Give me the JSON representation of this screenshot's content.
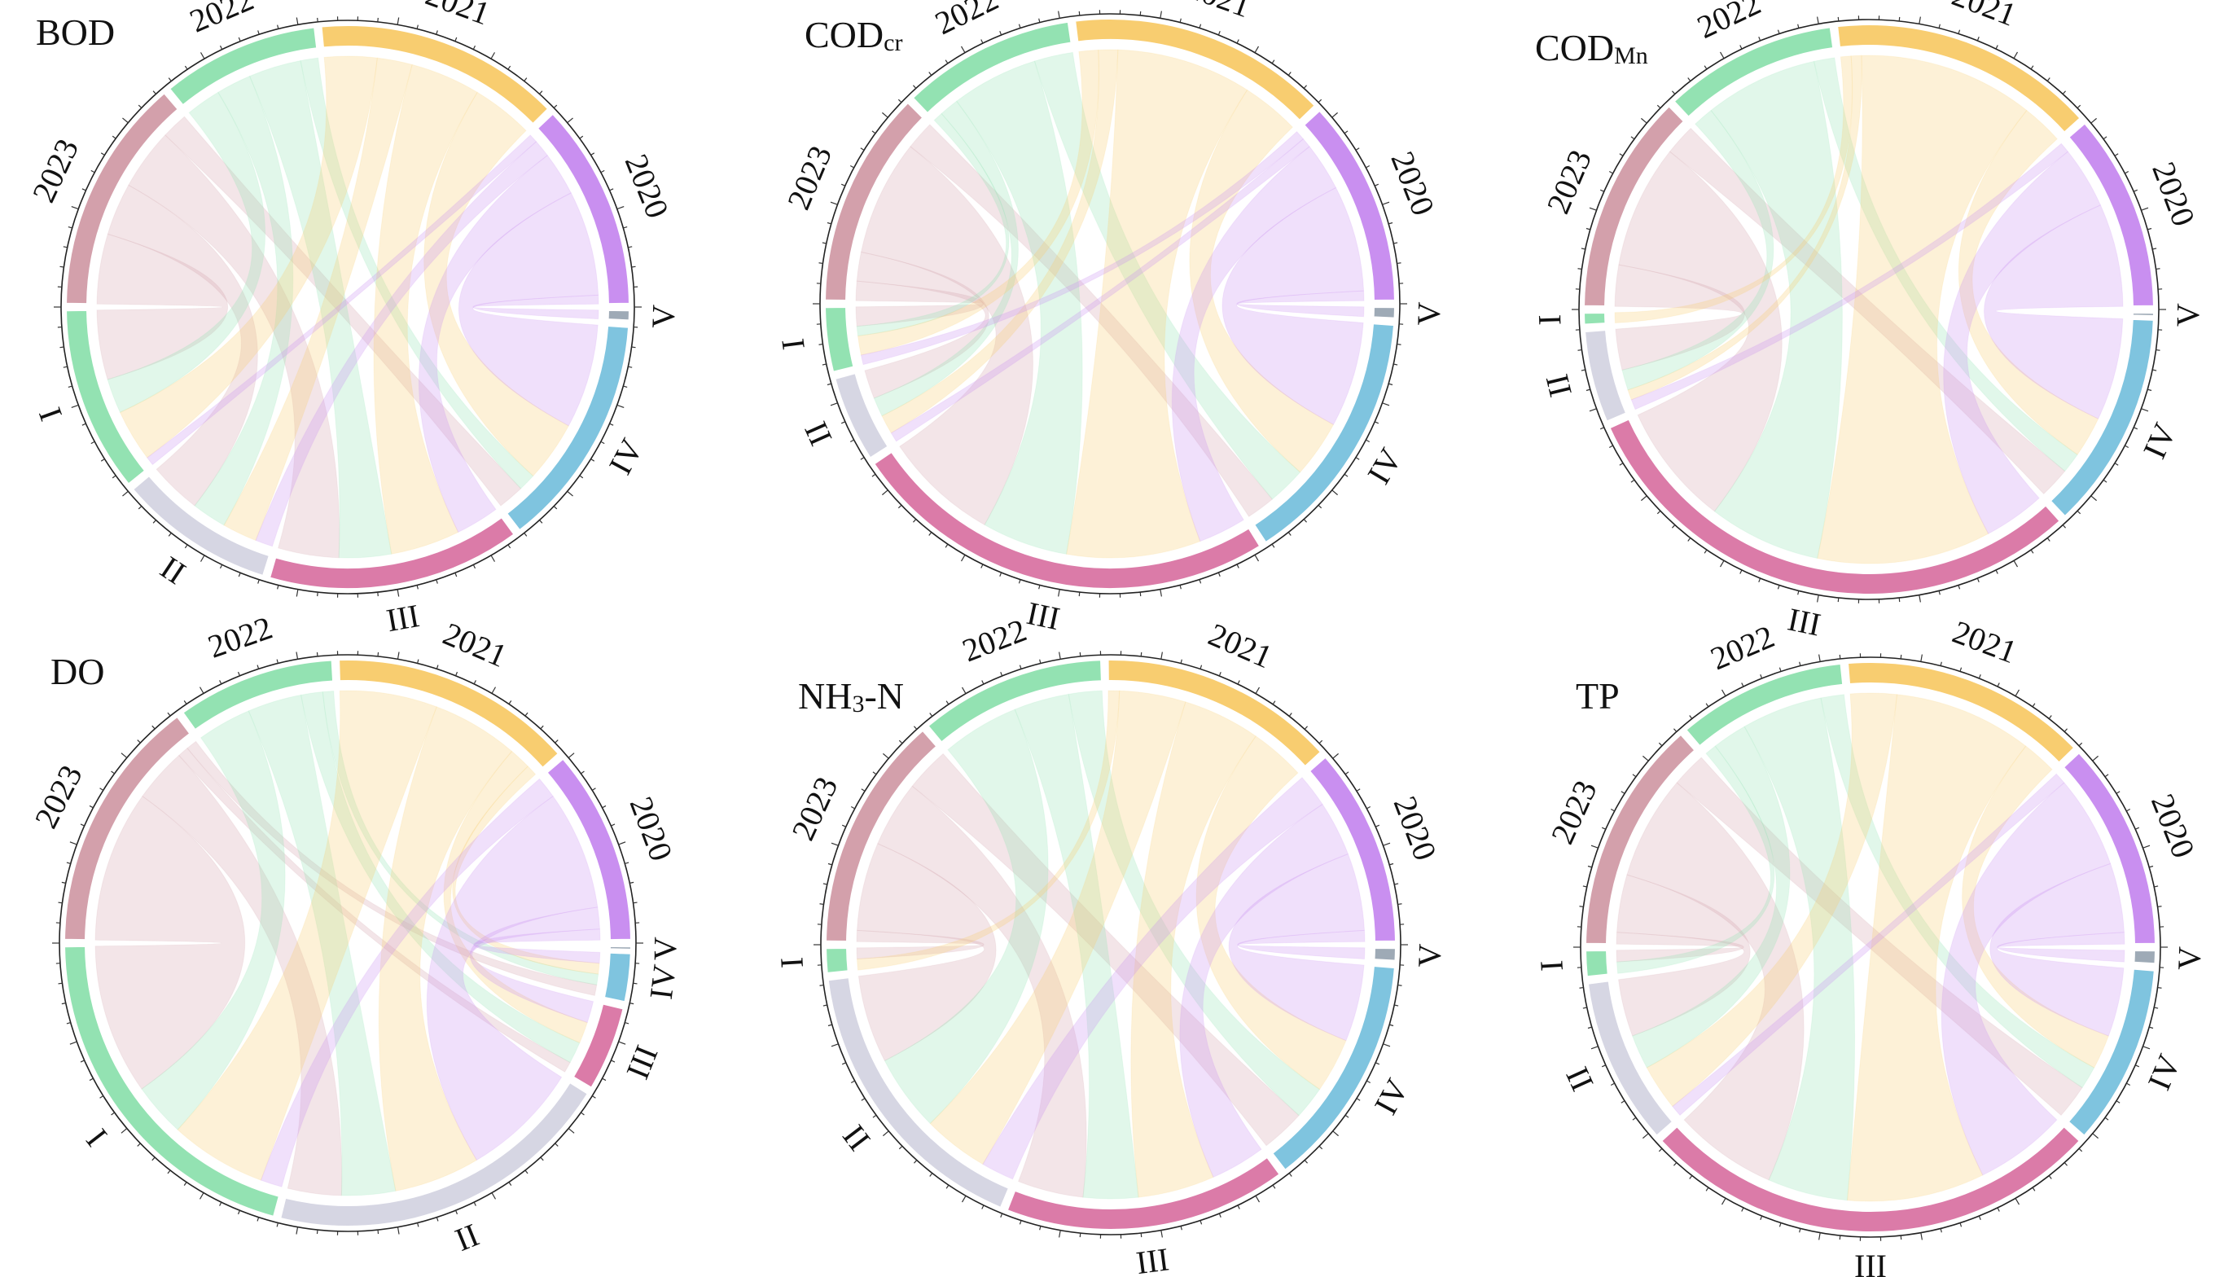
{
  "figure": {
    "type": "chord-diagram-grid"
  },
  "colors": {
    "2020": "#c98ff0",
    "2021": "#f8cd70",
    "2022": "#93e2b2",
    "2023": "#d3a0ab",
    "I": "#93e2b2",
    "II": "#d6d6e3",
    "III": "#db7ba8",
    "IV": "#7fc4df",
    "V": "#9eaab6"
  },
  "chart_data": [
    {
      "type": "chord",
      "title": "BOD",
      "title_sub": "",
      "years": [
        "2020",
        "2021",
        "2022",
        "2023"
      ],
      "grades": [
        "I",
        "II",
        "III",
        "IV",
        "V"
      ],
      "flows": {
        "2020": {
          "I": 1,
          "II": 2,
          "III": 5,
          "IV": 12,
          "V": 1
        },
        "2021": {
          "I": 6,
          "II": 4,
          "III": 8,
          "IV": 7,
          "V": 0
        },
        "2022": {
          "I": 4,
          "II": 4,
          "III": 6,
          "IV": 2,
          "V": 0
        },
        "2023": {
          "I": 8,
          "II": 6,
          "III": 7,
          "IV": 3,
          "V": 0
        }
      }
    },
    {
      "type": "chord",
      "title": "COD",
      "title_sub": "cr",
      "years": [
        "2020",
        "2021",
        "2022",
        "2023"
      ],
      "grades": [
        "I",
        "II",
        "III",
        "IV",
        "V"
      ],
      "flows": {
        "2020": {
          "I": 1,
          "II": 1,
          "III": 5,
          "IV": 11,
          "V": 1
        },
        "2021": {
          "I": 2,
          "II": 2,
          "III": 14,
          "IV": 6,
          "V": 0
        },
        "2022": {
          "I": 1,
          "II": 2,
          "III": 9,
          "IV": 4,
          "V": 0
        },
        "2023": {
          "I": 2,
          "II": 3,
          "III": 12,
          "IV": 3,
          "V": 0
        }
      }
    },
    {
      "type": "chord",
      "title": "COD",
      "title_sub": "Mn",
      "years": [
        "2020",
        "2021",
        "2022",
        "2023"
      ],
      "grades": [
        "I",
        "II",
        "III",
        "IV",
        "V"
      ],
      "flows": {
        "2020": {
          "I": 0,
          "II": 1,
          "III": 6,
          "IV": 10,
          "V": 0
        },
        "2021": {
          "I": 1,
          "II": 1,
          "III": 17,
          "IV": 4,
          "V": 0
        },
        "2022": {
          "I": 0,
          "II": 2,
          "III": 11,
          "IV": 2,
          "V": 0
        },
        "2023": {
          "I": 0,
          "II": 4,
          "III": 12,
          "IV": 3,
          "V": 0
        }
      }
    },
    {
      "type": "chord",
      "title": "DO",
      "title_sub": "",
      "years": [
        "2020",
        "2021",
        "2022",
        "2023"
      ],
      "grades": [
        "I",
        "II",
        "III",
        "IV",
        "V"
      ],
      "flows": {
        "2020": {
          "I": 2,
          "II": 11,
          "III": 2,
          "IV": 1,
          "V": 0
        },
        "2021": {
          "I": 9,
          "II": 8,
          "III": 2,
          "IV": 1,
          "V": 0
        },
        "2022": {
          "I": 5,
          "II": 5,
          "III": 2,
          "IV": 1,
          "V": 0
        },
        "2023": {
          "I": 14,
          "II": 5,
          "III": 1,
          "IV": 1,
          "V": 0
        }
      }
    },
    {
      "type": "chord",
      "title": "NH",
      "title_sub": "3",
      "title_tail": "-N",
      "years": [
        "2020",
        "2021",
        "2022",
        "2023"
      ],
      "grades": [
        "I",
        "II",
        "III",
        "IV",
        "V"
      ],
      "flows": {
        "2020": {
          "I": 0,
          "II": 3,
          "III": 5,
          "IV": 7,
          "V": 1
        },
        "2021": {
          "I": 1,
          "II": 6,
          "III": 7,
          "IV": 5,
          "V": 0
        },
        "2022": {
          "I": 0,
          "II": 7,
          "III": 5,
          "IV": 3,
          "V": 0
        },
        "2023": {
          "I": 1,
          "II": 8,
          "III": 6,
          "IV": 4,
          "V": 0
        }
      }
    },
    {
      "type": "chord",
      "title": "TP",
      "title_sub": "",
      "years": [
        "2020",
        "2021",
        "2022",
        "2023"
      ],
      "grades": [
        "I",
        "II",
        "III",
        "IV",
        "V"
      ],
      "flows": {
        "2020": {
          "I": 0,
          "II": 1,
          "III": 8,
          "IV": 6,
          "V": 1
        },
        "2021": {
          "I": 0,
          "II": 4,
          "III": 12,
          "IV": 3,
          "V": 0
        },
        "2022": {
          "I": 1,
          "II": 3,
          "III": 7,
          "IV": 2,
          "V": 0
        },
        "2023": {
          "I": 1,
          "II": 5,
          "III": 9,
          "IV": 3,
          "V": 0
        }
      }
    }
  ]
}
